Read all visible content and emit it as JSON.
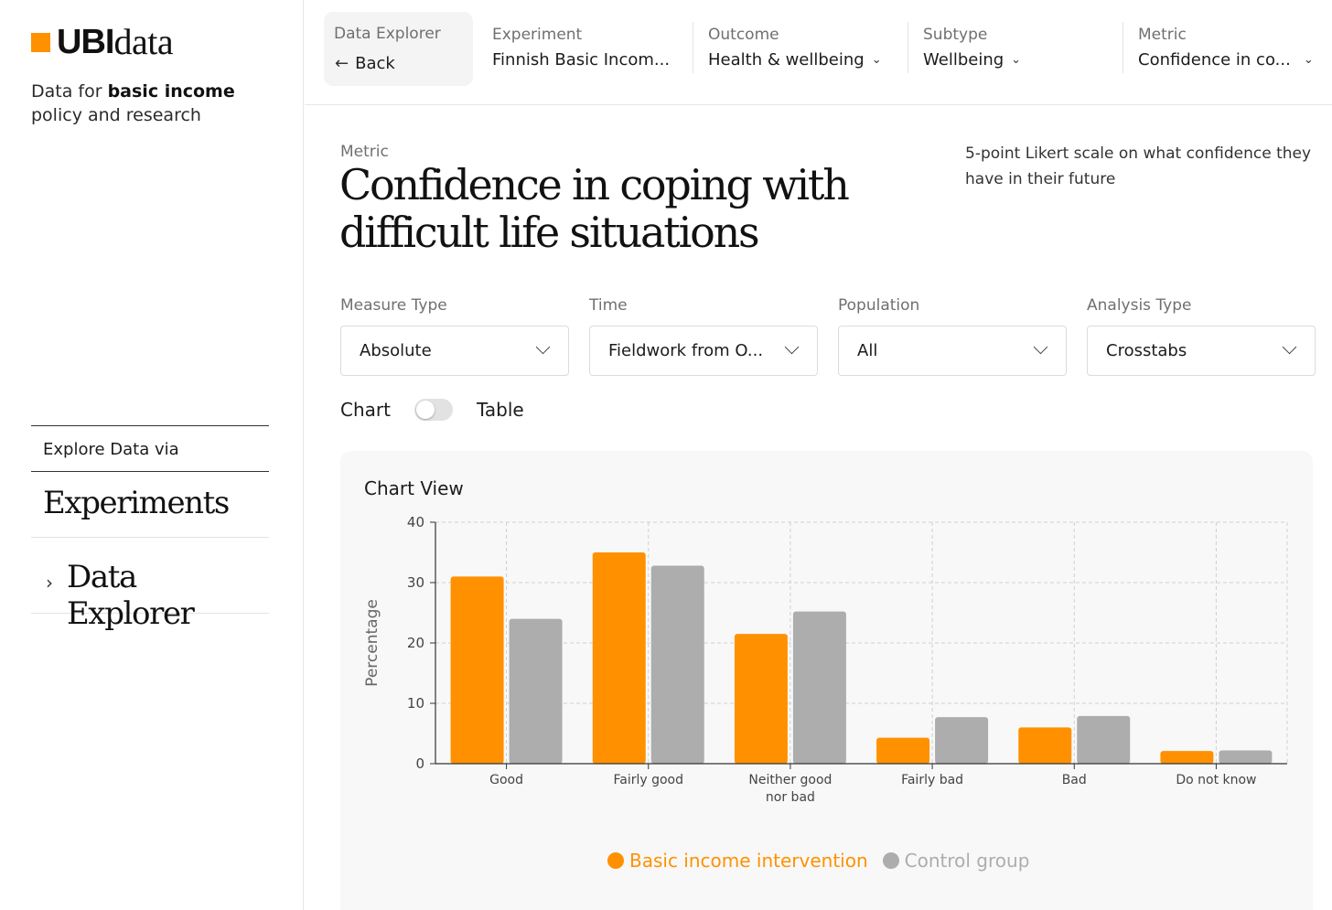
{
  "brand": {
    "name_bold": "UBI",
    "name_light": "data",
    "accent": "#ff9100"
  },
  "sidebar": {
    "tagline_pre": "Data for ",
    "tagline_bold": "basic income",
    "tagline_post": "policy and research",
    "explore_label": "Explore Data via",
    "nav": [
      {
        "label": "Experiments",
        "active": false
      },
      {
        "label": "Data Explorer",
        "active": true,
        "chevron": "›"
      }
    ]
  },
  "topbar": {
    "back": {
      "label": "Data Explorer",
      "text": "Back",
      "icon": "arrow-left-icon"
    },
    "crumbs": [
      {
        "label": "Experiment",
        "value": "Finnish Basic Incom...",
        "dropdown": false
      },
      {
        "label": "Outcome",
        "value": "Health & wellbeing",
        "dropdown": true
      },
      {
        "label": "Subtype",
        "value": "Wellbeing",
        "dropdown": true
      },
      {
        "label": "Metric",
        "value": "Confidence in co...",
        "dropdown": true
      }
    ]
  },
  "main": {
    "metric_tag": "Metric",
    "title": "Confidence in coping with difficult life situations",
    "description": "5-point Likert scale on what confidence they have in their future",
    "filters": [
      {
        "label": "Measure Type",
        "value": "Absolute"
      },
      {
        "label": "Time",
        "value": "Fieldwork from O..."
      },
      {
        "label": "Population",
        "value": "All"
      },
      {
        "label": "Analysis Type",
        "value": "Crosstabs"
      }
    ],
    "toggle": {
      "left": "Chart",
      "right": "Table",
      "state": "Chart"
    },
    "chart_card_title": "Chart View"
  },
  "chart_data": {
    "type": "bar",
    "categories": [
      "Good",
      "Fairly good",
      "Neither good nor bad",
      "Fairly bad",
      "Bad",
      "Do not know"
    ],
    "category_lines": [
      [
        "Good"
      ],
      [
        "Fairly good"
      ],
      [
        "Neither good",
        "nor bad"
      ],
      [
        "Fairly bad"
      ],
      [
        "Bad"
      ],
      [
        "Do not know"
      ]
    ],
    "series": [
      {
        "name": "Basic income intervention",
        "color": "#ff9100",
        "values": [
          31,
          35,
          21.5,
          4.3,
          6,
          2.1
        ]
      },
      {
        "name": "Control group",
        "color": "#adadad",
        "values": [
          24,
          32.8,
          25.2,
          7.7,
          7.9,
          2.2
        ]
      }
    ],
    "ylabel": "Percentage",
    "ylim": [
      0,
      40
    ],
    "yticks": [
      0,
      10,
      20,
      30,
      40
    ],
    "grid": true,
    "legend": "bottom"
  }
}
